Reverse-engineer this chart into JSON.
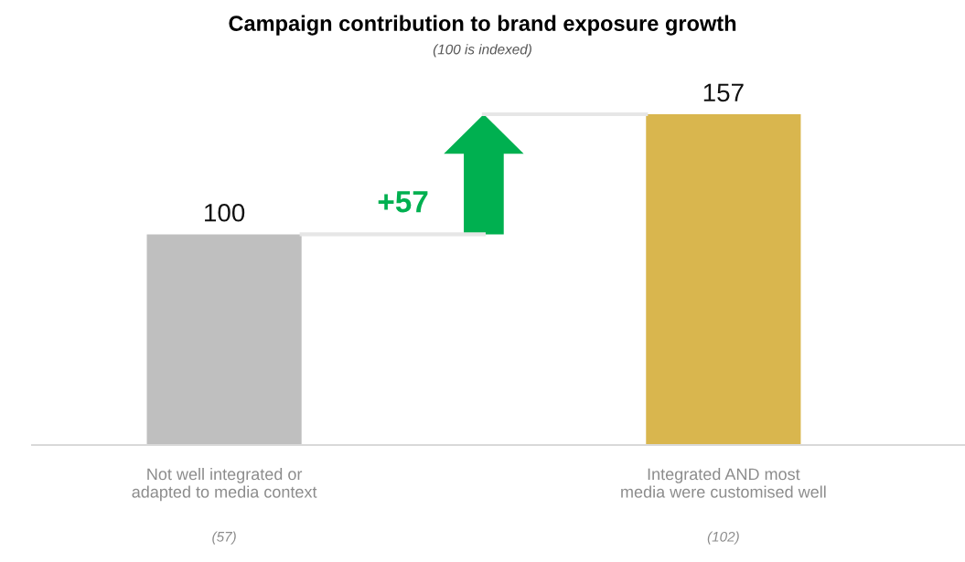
{
  "chart_data": {
    "type": "bar",
    "title": "Campaign contribution to brand exposure growth",
    "subtitle": "(100 is indexed)",
    "categories": [
      "Not well integrated or\nadapted to media context",
      "Integrated AND most\nmedia were customised well"
    ],
    "values": [
      100,
      157
    ],
    "colors": [
      "#bfbfbf",
      "#d9b64e"
    ],
    "data_labels": true,
    "grid": false,
    "legend": false,
    "annotations": [
      "+57",
      "(57)",
      "(102)"
    ]
  }
}
